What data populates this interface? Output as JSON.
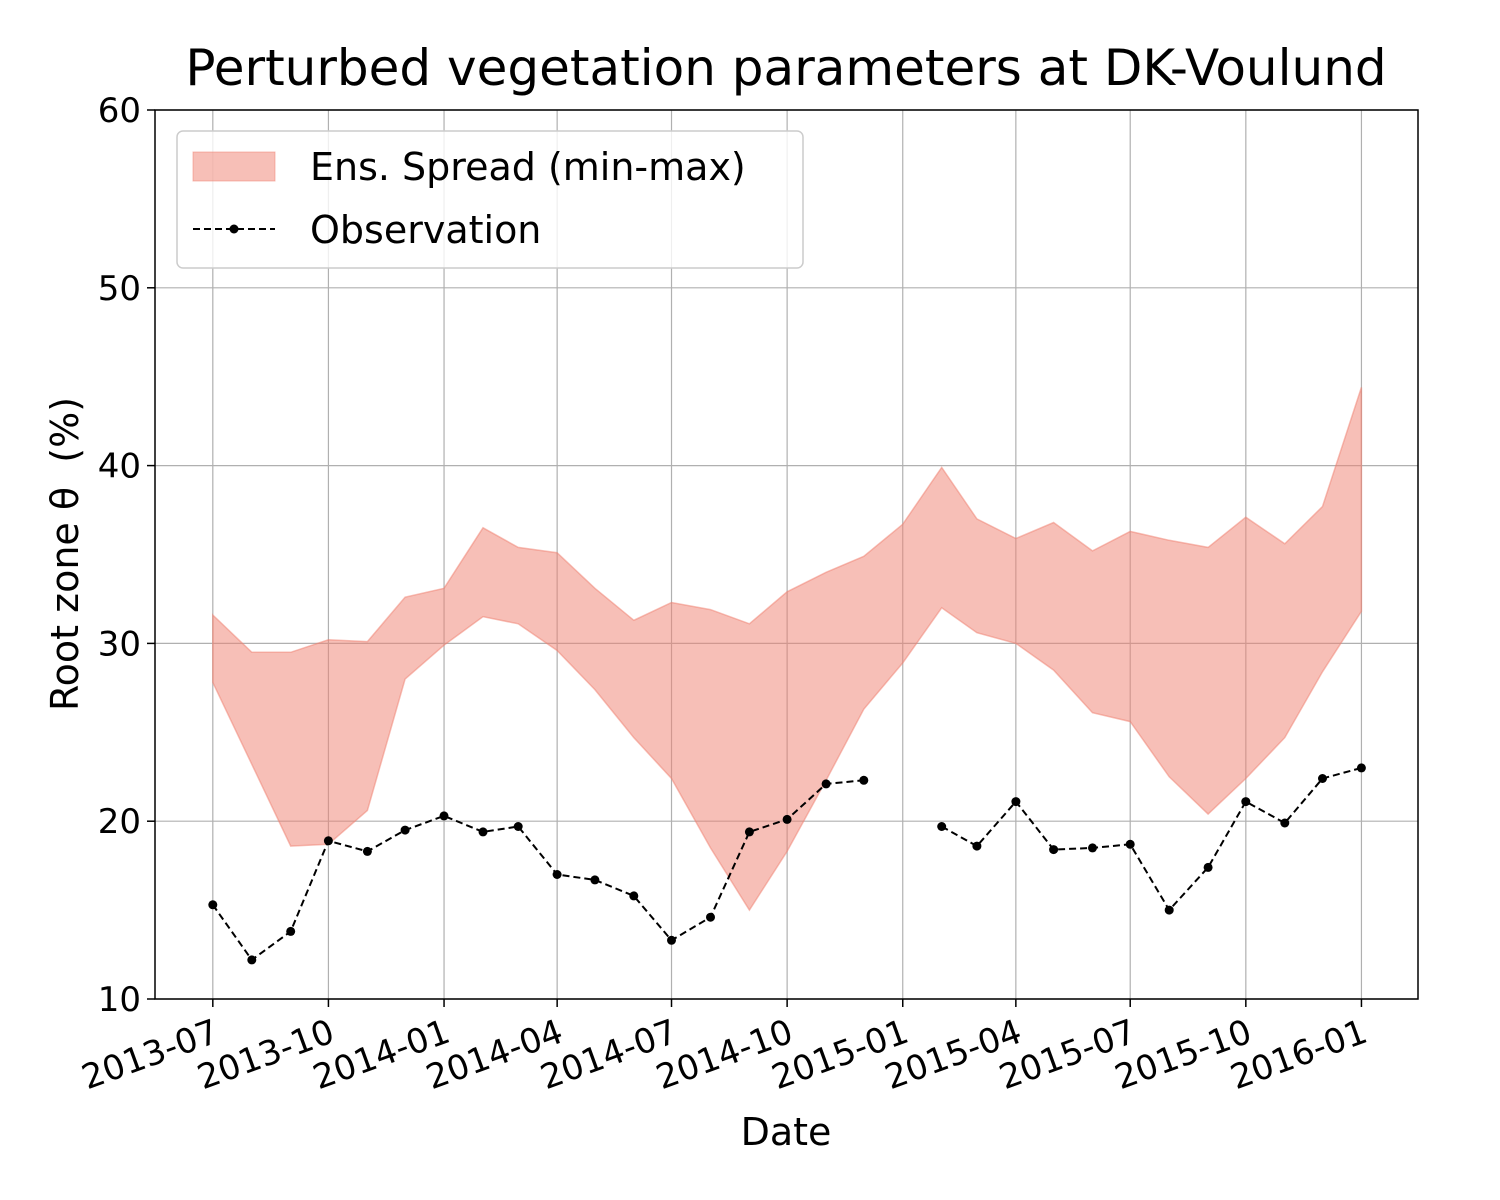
{
  "chart_data": {
    "type": "area",
    "title": "Perturbed vegetation parameters at DK-Voulund",
    "xlabel": "Date",
    "ylabel": "Root zone θ  (%)",
    "ylim": [
      10,
      60
    ],
    "yticks": [
      10,
      20,
      30,
      40,
      50,
      60
    ],
    "xlim": [
      "2013-05-16",
      "2016-02-15"
    ],
    "xticks": [
      "2013-07",
      "2013-10",
      "2014-01",
      "2014-04",
      "2014-07",
      "2014-10",
      "2015-01",
      "2015-04",
      "2015-07",
      "2015-10",
      "2016-01"
    ],
    "grid": true,
    "legend_position": "top-left",
    "colors": {
      "spread_fill": "#f08070",
      "observation": "#000000",
      "grid": "#b0b0b0"
    },
    "series": [
      {
        "name": "Ens. Spread (min-max)",
        "kind": "band",
        "x": [
          "2013-07-01",
          "2013-08-01",
          "2013-09-01",
          "2013-10-01",
          "2013-11-01",
          "2013-12-01",
          "2014-01-01",
          "2014-02-01",
          "2014-03-01",
          "2014-04-01",
          "2014-05-01",
          "2014-06-01",
          "2014-07-01",
          "2014-08-01",
          "2014-09-01",
          "2014-10-01",
          "2014-11-01",
          "2014-12-01",
          "2015-01-01",
          "2015-02-01",
          "2015-03-01",
          "2015-04-01",
          "2015-05-01",
          "2015-06-01",
          "2015-07-01",
          "2015-08-01",
          "2015-09-01",
          "2015-10-01",
          "2015-11-01",
          "2015-12-01",
          "2016-01-01"
        ],
        "min": [
          27.8,
          23.2,
          18.6,
          18.7,
          20.6,
          28.0,
          29.9,
          31.5,
          31.1,
          29.6,
          27.4,
          24.7,
          22.4,
          18.5,
          15.0,
          18.3,
          22.3,
          26.3,
          28.9,
          32.0,
          30.6,
          30.0,
          28.5,
          26.1,
          25.6,
          22.5,
          20.4,
          22.4,
          24.7,
          28.4,
          31.8
        ],
        "max": [
          31.6,
          29.5,
          29.5,
          30.2,
          30.1,
          32.6,
          33.1,
          36.5,
          35.4,
          35.1,
          33.1,
          31.3,
          32.3,
          31.9,
          31.1,
          32.9,
          34.0,
          34.9,
          36.7,
          39.9,
          37.0,
          35.9,
          36.8,
          35.2,
          36.3,
          35.8,
          35.4,
          37.1,
          35.6,
          37.7,
          44.4
        ]
      },
      {
        "name": "Observation",
        "kind": "line",
        "x": [
          "2013-07-01",
          "2013-08-01",
          "2013-09-01",
          "2013-10-01",
          "2013-11-01",
          "2013-12-01",
          "2014-01-01",
          "2014-02-01",
          "2014-03-01",
          "2014-04-01",
          "2014-05-01",
          "2014-06-01",
          "2014-07-01",
          "2014-08-01",
          "2014-09-01",
          "2014-10-01",
          "2014-11-01",
          "2014-12-01",
          "2015-01-01",
          "2015-02-01",
          "2015-03-01",
          "2015-04-01",
          "2015-05-01",
          "2015-06-01",
          "2015-07-01",
          "2015-08-01",
          "2015-09-01",
          "2015-10-01",
          "2015-11-01",
          "2015-12-01",
          "2016-01-01"
        ],
        "y": [
          15.3,
          12.2,
          13.8,
          18.9,
          18.3,
          19.5,
          20.3,
          19.4,
          19.7,
          17.0,
          16.7,
          15.8,
          13.3,
          14.6,
          19.4,
          20.1,
          22.1,
          22.3,
          null,
          19.7,
          18.6,
          21.1,
          18.4,
          18.5,
          18.7,
          15.0,
          17.4,
          21.1,
          19.9,
          22.4,
          23.0
        ]
      }
    ]
  }
}
